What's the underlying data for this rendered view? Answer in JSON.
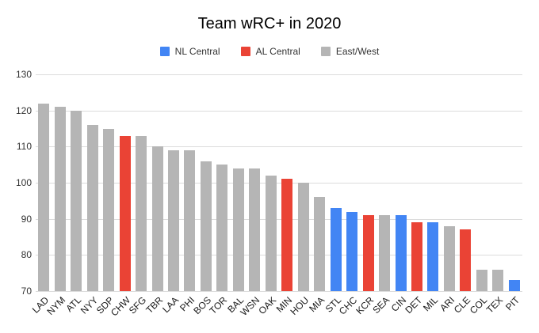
{
  "title": "Team wRC+ in 2020",
  "legend": [
    {
      "label": "NL Central",
      "color": "#4285F4"
    },
    {
      "label": "AL Central",
      "color": "#EA4335"
    },
    {
      "label": "East/West",
      "color": "#B5B5B5"
    }
  ],
  "chart_data": {
    "type": "bar",
    "title": "Team wRC+ in 2020",
    "xlabel": "",
    "ylabel": "",
    "ylim": [
      70,
      130
    ],
    "yticks": [
      70,
      80,
      90,
      100,
      110,
      120,
      130
    ],
    "grid": true,
    "legend_position": "top",
    "categories": [
      "LAD",
      "NYM",
      "ATL",
      "NYY",
      "SDP",
      "CHW",
      "SFG",
      "TBR",
      "LAA",
      "PHI",
      "BOS",
      "TOR",
      "BAL",
      "WSN",
      "OAK",
      "MIN",
      "HOU",
      "MIA",
      "STL",
      "CHC",
      "KCR",
      "SEA",
      "CIN",
      "DET",
      "MIL",
      "ARI",
      "CLE",
      "COL",
      "TEX",
      "PIT"
    ],
    "values": [
      122,
      121,
      120,
      116,
      115,
      113,
      113,
      110,
      109,
      109,
      106,
      105,
      104,
      104,
      102,
      101,
      100,
      96,
      93,
      92,
      91,
      91,
      91,
      89,
      89,
      88,
      87,
      76,
      76,
      73
    ],
    "groups": [
      "East/West",
      "East/West",
      "East/West",
      "East/West",
      "East/West",
      "AL Central",
      "East/West",
      "East/West",
      "East/West",
      "East/West",
      "East/West",
      "East/West",
      "East/West",
      "East/West",
      "East/West",
      "AL Central",
      "East/West",
      "East/West",
      "NL Central",
      "NL Central",
      "AL Central",
      "East/West",
      "NL Central",
      "AL Central",
      "NL Central",
      "East/West",
      "AL Central",
      "East/West",
      "East/West",
      "NL Central"
    ],
    "group_colors": {
      "NL Central": "#4285F4",
      "AL Central": "#EA4335",
      "East/West": "#B5B5B5"
    }
  }
}
